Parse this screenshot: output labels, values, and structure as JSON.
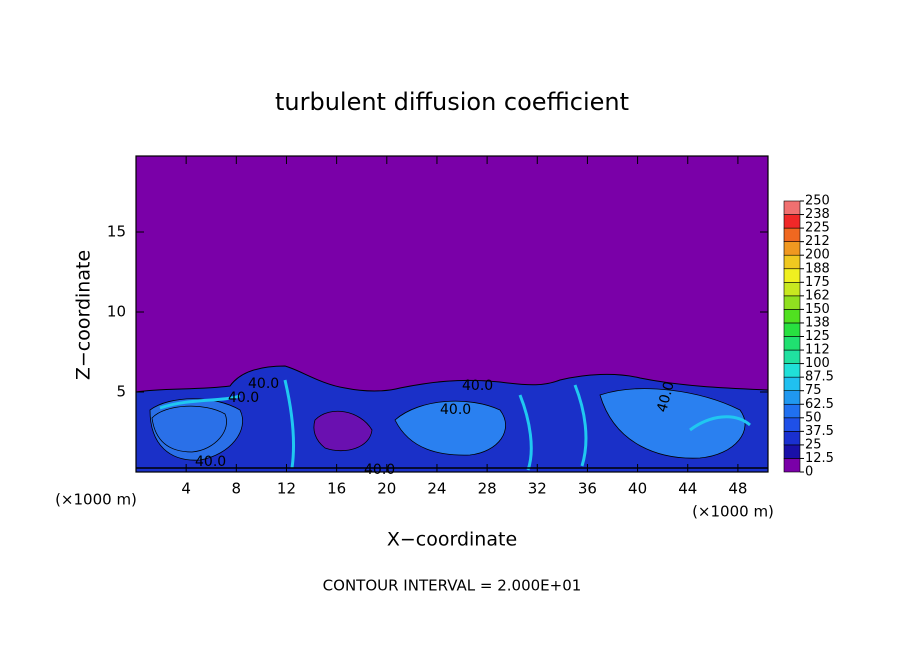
{
  "chart_data": {
    "type": "contour",
    "title": "turbulent diffusion coefficient",
    "x_label": "X−coordinate",
    "y_label": "Z−coordinate",
    "x_unit_left": "(×1000 m)",
    "x_unit_right": "(×1000 m)",
    "footer": "CONTOUR INTERVAL = 2.000E+01",
    "contour_labels": [
      "40.0",
      "40.0",
      "40.0",
      "40.0",
      "40.0",
      "40.0",
      "40.0"
    ],
    "xlim": [
      0,
      50.4
    ],
    "xticks": [
      4,
      8,
      12,
      16,
      20,
      24,
      28,
      32,
      36,
      40,
      44,
      48
    ],
    "ylim": [
      0,
      19.75
    ],
    "yticks": [
      5,
      10,
      15
    ],
    "colorbar": {
      "levels": [
        0,
        12.5,
        25,
        37.5,
        50,
        62.5,
        75,
        87.5,
        100,
        {
          "value": 112.5,
          "label": "112"
        },
        125,
        {
          "value": 137.5,
          "label": "138"
        },
        150,
        {
          "value": 162.5,
          "label": "162"
        },
        175,
        {
          "value": 187.5,
          "label": "188"
        },
        200,
        {
          "value": 212.5,
          "label": "212"
        },
        225,
        {
          "value": 237.5,
          "label": "238"
        },
        250
      ],
      "colors": [
        "#7a00a8",
        "#1a10a8",
        "#1a30d0",
        "#1f50e8",
        "#2070f0",
        "#2098f0",
        "#20c0f0",
        "#20e0d8",
        "#20e0a0",
        "#20e070",
        "#28e040",
        "#50e020",
        "#90e020",
        "#c8e820",
        "#f0f020",
        "#f0c820",
        "#f09820",
        "#f06820",
        "#f02828",
        "#f07070"
      ]
    }
  }
}
